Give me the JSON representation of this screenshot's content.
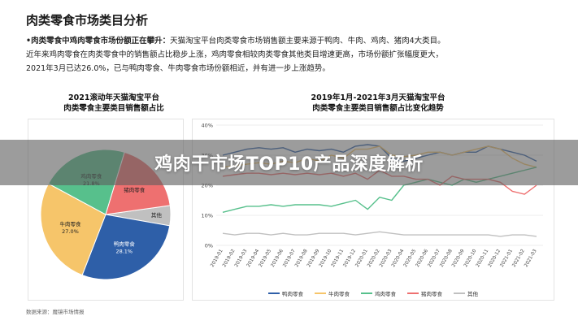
{
  "page": {
    "title": "肉类零食市场类目分析",
    "desc_bold": "•肉类零食中鸡肉零食市场份额正在攀升：",
    "desc_line1": "天猫淘宝平台肉类零食市场销售额主要来源于鸭肉、牛肉、鸡肉、猪肉4大类目。",
    "desc_line2": "近年来鸡肉零食在肉类零食中的销售额占比稳步上涨，鸡肉零食相较肉类零食其他类目增速更高，市场份额扩张幅度更大，",
    "desc_line3": "2021年3月已达26.0%，已与鸭肉零食、牛肉零食市场份额相近，并有进一步上涨趋势。",
    "source": "数据来源：魔镜市场情报",
    "banner": "鸡肉干市场TOP10产品深度解析"
  },
  "colors": {
    "duck": "#2e5fa8",
    "beef": "#f6c56a",
    "chicken": "#57c08c",
    "pork": "#ee7070",
    "other": "#c0c0c0"
  },
  "chart_data": [
    {
      "type": "pie",
      "title_line1": "2021滚动年天猫淘宝平台",
      "title_line2": "肉类零食主要类目销售额占比",
      "slices": [
        {
          "name": "鸭肉零食",
          "value": 28.1,
          "label": "28.1%"
        },
        {
          "name": "牛肉零食",
          "value": 27.0,
          "label": "27.0%"
        },
        {
          "name": "鸡肉零食",
          "value": 21.8,
          "label": "21.8%"
        },
        {
          "name": "猪肉零食",
          "value": 18.1,
          "label": ""
        },
        {
          "name": "其他",
          "value": 5.0,
          "label": ""
        }
      ]
    },
    {
      "type": "line",
      "title_line1": "2019年1月-2021年3月天猫淘宝平台",
      "title_line2": "肉类零食主要类目销售额占比变化趋势",
      "ylim": [
        0,
        40
      ],
      "yticks": [
        "0%",
        "10%",
        "20%",
        "30%",
        "40%"
      ],
      "x": [
        "2019-01",
        "2019-02",
        "2019-03",
        "2019-04",
        "2019-05",
        "2019-06",
        "2019-07",
        "2019-08",
        "2019-09",
        "2019-10",
        "2019-11",
        "2019-12",
        "2020-01",
        "2020-02",
        "2020-03",
        "2020-04",
        "2020-05",
        "2020-06",
        "2020-07",
        "2020-08",
        "2020-09",
        "2020-10",
        "2020-11",
        "2020-12",
        "2021-01",
        "2021-02",
        "2021-03"
      ],
      "series": [
        {
          "name": "鸭肉零食",
          "color_key": "duck",
          "values": [
            30,
            31,
            32,
            32.5,
            32,
            32.5,
            31,
            32,
            31.5,
            32,
            31,
            33,
            33.5,
            33,
            29,
            28,
            29,
            30,
            31,
            30,
            31,
            31,
            33,
            32,
            31,
            30,
            28
          ]
        },
        {
          "name": "牛肉零食",
          "color_key": "beef",
          "values": [
            26,
            26.5,
            27,
            27.5,
            27,
            28,
            27.5,
            29,
            28,
            30,
            29,
            32,
            32,
            33,
            30,
            29.5,
            30,
            31,
            31,
            30,
            31,
            32,
            33,
            32,
            29,
            27,
            26
          ]
        },
        {
          "name": "鸡肉零食",
          "color_key": "chicken",
          "values": [
            11,
            12,
            13,
            13,
            13.5,
            13,
            13.5,
            13.5,
            13.5,
            13,
            14,
            15,
            12,
            16,
            15,
            20,
            21,
            22,
            21,
            20,
            22,
            21,
            22,
            23,
            24,
            25,
            26
          ]
        },
        {
          "name": "猪肉零食",
          "color_key": "pork",
          "values": [
            23,
            23.5,
            24,
            24,
            23.5,
            24,
            23.5,
            24,
            23.5,
            24,
            23,
            24,
            22,
            25,
            23,
            23,
            22,
            22,
            20,
            23,
            22,
            22,
            22,
            21,
            18,
            17,
            20
          ]
        },
        {
          "name": "其他",
          "color_key": "other",
          "values": [
            4,
            3.5,
            4,
            4,
            3.5,
            4,
            3.5,
            3.5,
            4,
            4,
            4,
            3.5,
            4,
            4.5,
            4,
            3.5,
            3.5,
            3.5,
            3.5,
            3.5,
            3.5,
            3.5,
            3.5,
            3,
            3.5,
            3.5,
            3
          ]
        }
      ]
    }
  ]
}
